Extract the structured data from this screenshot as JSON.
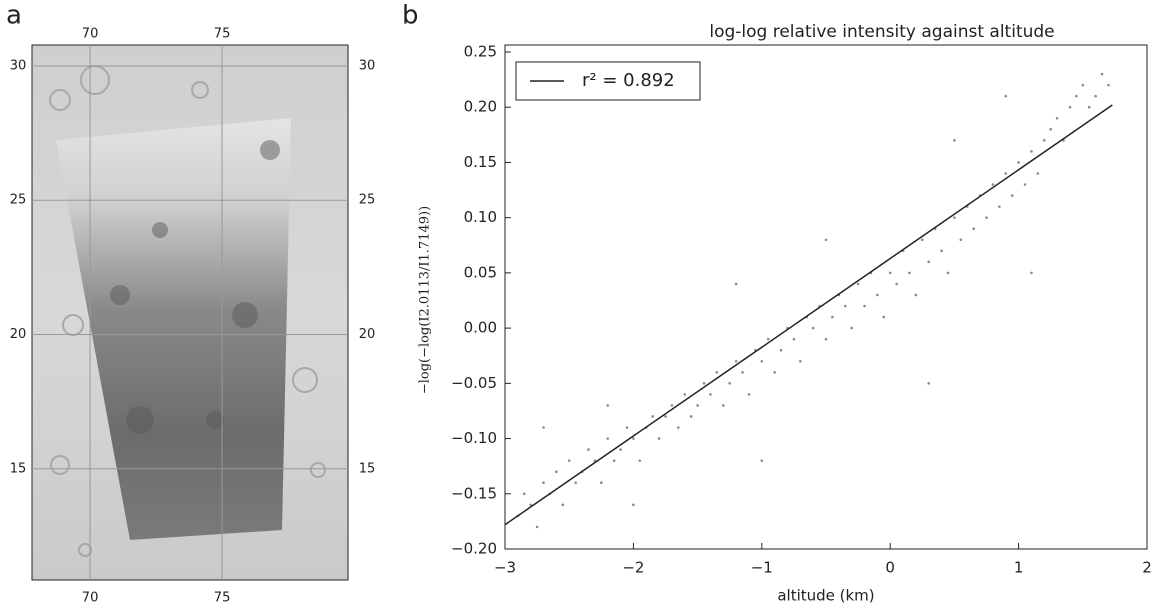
{
  "chart_data": [
    {
      "type": "map",
      "panel_label": "a",
      "xlim": [
        67.8,
        79.77
      ],
      "ylim": [
        10.86,
        30.78
      ],
      "xticks": [
        70,
        75
      ],
      "yticks": [
        15,
        20,
        25,
        30
      ],
      "grid": true
    },
    {
      "type": "scatter",
      "panel_label": "b",
      "title": "log-log relative intensity against altitude",
      "xlabel": "altitude (km)",
      "ylabel": "−log(−log(I2.0113/I1.7149))",
      "xlim": [
        -3,
        2
      ],
      "ylim": [
        -0.2,
        0.25
      ],
      "xticks": [
        {
          "value": -3,
          "label": "−3"
        },
        {
          "value": -2,
          "label": "−2"
        },
        {
          "value": -1,
          "label": "−1"
        },
        0,
        1,
        2
      ],
      "yticks": [
        {
          "value": -0.2,
          "label": "−0.20"
        },
        {
          "value": -0.15,
          "label": "−0.15"
        },
        {
          "value": -0.1,
          "label": "−0.10"
        },
        {
          "value": -0.05,
          "label": "−0.05"
        },
        {
          "value": 0,
          "label": "0.00"
        },
        0.05,
        {
          "value": 0.1,
          "label": "0.10"
        },
        0.15,
        {
          "value": 0.2,
          "label": "0.20"
        },
        0.25
      ],
      "legend": "upper left",
      "series": [
        {
          "type": "scatter",
          "color": "#8a8a8a",
          "x": [
            -2.9,
            -2.85,
            -2.8,
            -2.75,
            -2.7,
            -2.65,
            -2.6,
            -2.55,
            -2.5,
            -2.45,
            -2.4,
            -2.35,
            -2.3,
            -2.25,
            -2.2,
            -2.15,
            -2.1,
            -2.05,
            -2.0,
            -1.95,
            -1.9,
            -1.85,
            -1.8,
            -1.75,
            -1.7,
            -1.65,
            -1.6,
            -1.55,
            -1.5,
            -1.45,
            -1.4,
            -1.35,
            -1.3,
            -1.25,
            -1.2,
            -1.15,
            -1.1,
            -1.05,
            -1.0,
            -0.95,
            -0.9,
            -0.85,
            -0.8,
            -0.75,
            -0.7,
            -0.65,
            -0.6,
            -0.55,
            -0.5,
            -0.45,
            -0.4,
            -0.35,
            -0.3,
            -0.25,
            -0.2,
            -0.15,
            -0.1,
            -0.05,
            0.0,
            0.05,
            0.1,
            0.15,
            0.2,
            0.25,
            0.3,
            0.35,
            0.4,
            0.45,
            0.5,
            0.55,
            0.6,
            0.65,
            0.7,
            0.75,
            0.8,
            0.85,
            0.9,
            0.95,
            1.0,
            1.05,
            1.1,
            1.15,
            1.2,
            1.25,
            1.3,
            1.35,
            1.4,
            1.45,
            1.5,
            1.55,
            1.6,
            1.65,
            1.7,
            -2.7,
            -2.2,
            -1.2,
            -0.5,
            0.3,
            0.9,
            1.1,
            -1.0,
            0.5,
            -2.0
          ],
          "values": [
            -0.17,
            -0.15,
            -0.16,
            -0.18,
            -0.14,
            -0.15,
            -0.13,
            -0.16,
            -0.12,
            -0.14,
            -0.13,
            -0.11,
            -0.12,
            -0.14,
            -0.1,
            -0.12,
            -0.11,
            -0.09,
            -0.1,
            -0.12,
            -0.09,
            -0.08,
            -0.1,
            -0.08,
            -0.07,
            -0.09,
            -0.06,
            -0.08,
            -0.07,
            -0.05,
            -0.06,
            -0.04,
            -0.07,
            -0.05,
            -0.03,
            -0.04,
            -0.06,
            -0.02,
            -0.03,
            -0.01,
            -0.04,
            -0.02,
            0.0,
            -0.01,
            -0.03,
            0.01,
            0.0,
            0.02,
            -0.01,
            0.01,
            0.03,
            0.02,
            0.0,
            0.04,
            0.02,
            0.05,
            0.03,
            0.01,
            0.05,
            0.04,
            0.07,
            0.05,
            0.03,
            0.08,
            0.06,
            0.09,
            0.07,
            0.05,
            0.1,
            0.08,
            0.11,
            0.09,
            0.12,
            0.1,
            0.13,
            0.11,
            0.14,
            0.12,
            0.15,
            0.13,
            0.16,
            0.14,
            0.17,
            0.18,
            0.19,
            0.17,
            0.2,
            0.21,
            0.22,
            0.2,
            0.21,
            0.23,
            0.22,
            -0.09,
            -0.07,
            0.04,
            0.08,
            -0.05,
            0.21,
            0.05,
            -0.12,
            0.17,
            -0.16
          ]
        },
        {
          "type": "line",
          "name": "r² = 0.892",
          "color": "#222222",
          "x": [
            -3,
            1.73
          ],
          "values": [
            -0.178,
            0.202
          ]
        }
      ]
    }
  ]
}
